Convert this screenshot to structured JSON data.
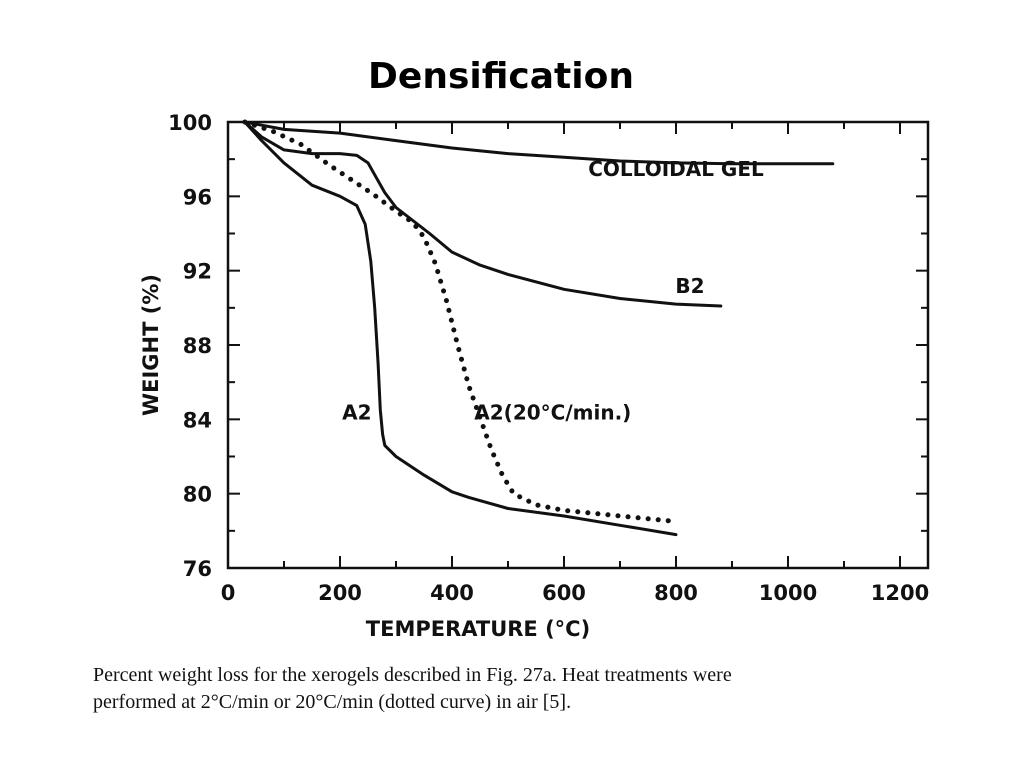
{
  "slide_title": "Densification",
  "caption": {
    "line1": "Percent weight loss for the xerogels described in Fig. 27a. Heat treatments were",
    "line2": "performed at 2°C/min or 20°C/min (dotted curve) in air [5]."
  },
  "chart_data": {
    "type": "line",
    "title": "",
    "xlabel": "TEMPERATURE (°C)",
    "ylabel": "WEIGHT (%)",
    "xlim": [
      0,
      1250
    ],
    "ylim": [
      76,
      100
    ],
    "xticks": [
      0,
      200,
      400,
      600,
      800,
      1000,
      1200
    ],
    "yticks": [
      76,
      80,
      84,
      88,
      92,
      96,
      100
    ],
    "grid": false,
    "legend": "none",
    "series": [
      {
        "name": "COLLOIDAL GEL",
        "style": "solid",
        "color": "#111111",
        "x": [
          30,
          100,
          200,
          300,
          400,
          500,
          600,
          700,
          800,
          900,
          1000,
          1080
        ],
        "y": [
          100,
          99.6,
          99.4,
          99.0,
          98.6,
          98.3,
          98.1,
          97.9,
          97.8,
          97.75,
          97.75,
          97.75
        ]
      },
      {
        "name": "B2",
        "style": "solid",
        "color": "#111111",
        "x": [
          30,
          60,
          100,
          150,
          200,
          230,
          250,
          265,
          280,
          300,
          330,
          360,
          400,
          450,
          500,
          600,
          700,
          800,
          880
        ],
        "y": [
          100,
          99.2,
          98.5,
          98.3,
          98.3,
          98.2,
          97.8,
          97.0,
          96.2,
          95.4,
          94.7,
          94.0,
          93.0,
          92.3,
          91.8,
          91.0,
          90.5,
          90.2,
          90.1
        ]
      },
      {
        "name": "A2",
        "style": "solid",
        "color": "#111111",
        "x": [
          30,
          60,
          100,
          150,
          200,
          230,
          245,
          255,
          262,
          268,
          272,
          276,
          280,
          300,
          350,
          400,
          430,
          500,
          600,
          700,
          800
        ],
        "y": [
          100,
          99.0,
          97.8,
          96.6,
          96.0,
          95.5,
          94.5,
          92.5,
          90.0,
          87.0,
          84.5,
          83.2,
          82.6,
          82.0,
          81.0,
          80.1,
          79.8,
          79.2,
          78.8,
          78.3,
          77.8
        ]
      },
      {
        "name": "A2(20°C/min.)",
        "style": "dotted",
        "color": "#111111",
        "x": [
          30,
          80,
          130,
          180,
          220,
          260,
          300,
          330,
          350,
          370,
          390,
          410,
          430,
          450,
          470,
          490,
          510,
          550,
          600,
          700,
          800
        ],
        "y": [
          100,
          99.5,
          98.8,
          97.7,
          96.9,
          96.1,
          95.2,
          94.6,
          93.8,
          92.4,
          90.4,
          88.0,
          85.8,
          84.1,
          82.4,
          81.0,
          80.0,
          79.4,
          79.1,
          78.8,
          78.5
        ]
      }
    ],
    "annotations": [
      {
        "text": "COLLOIDAL GEL",
        "x": 800,
        "y": 97.1
      },
      {
        "text": "B2",
        "x": 825,
        "y": 90.8
      },
      {
        "text": "A2",
        "x": 230,
        "y": 84.0
      },
      {
        "text": "A2(20°C/min.)",
        "x": 580,
        "y": 84.0
      }
    ]
  }
}
